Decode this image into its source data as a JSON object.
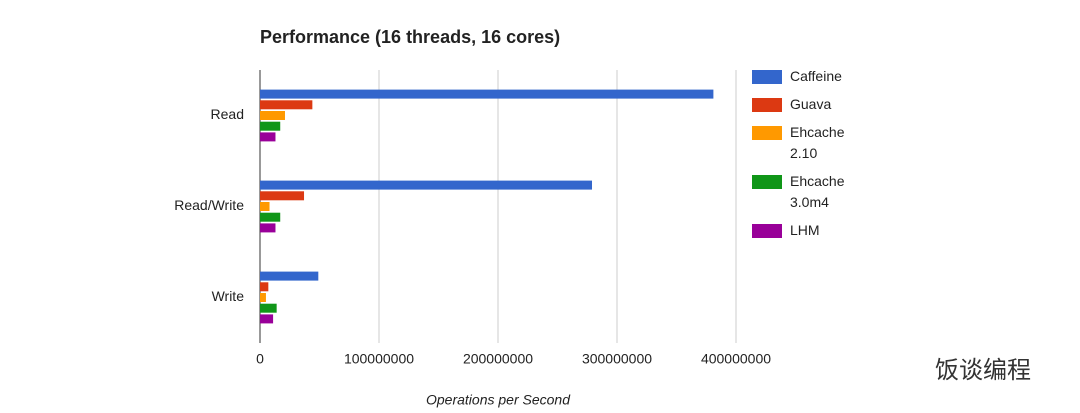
{
  "chart_data": {
    "type": "bar",
    "orientation": "horizontal",
    "title": "Performance (16 threads, 16 cores)",
    "x_label": "Operations per Second",
    "categories": [
      "Read",
      "Read/Write",
      "Write"
    ],
    "series": [
      {
        "name": "Caffeine",
        "color": "#3366cc",
        "values": [
          381000000,
          279000000,
          49000000
        ]
      },
      {
        "name": "Guava",
        "color": "#dc3912",
        "values": [
          44000000,
          37000000,
          7000000
        ]
      },
      {
        "name": "Ehcache 2.10",
        "color": "#ff9900",
        "values": [
          21000000,
          8000000,
          5000000
        ]
      },
      {
        "name": "Ehcache 3.0m4",
        "color": "#109618",
        "values": [
          17000000,
          17000000,
          14000000
        ]
      },
      {
        "name": "LHM",
        "color": "#990099",
        "values": [
          13000000,
          13000000,
          11000000
        ]
      }
    ],
    "xlim": [
      0,
      400000000
    ],
    "xticks": [
      0,
      100000000,
      200000000,
      300000000,
      400000000
    ],
    "grid": true,
    "legend": "right",
    "watermark": "饭谈编程"
  }
}
